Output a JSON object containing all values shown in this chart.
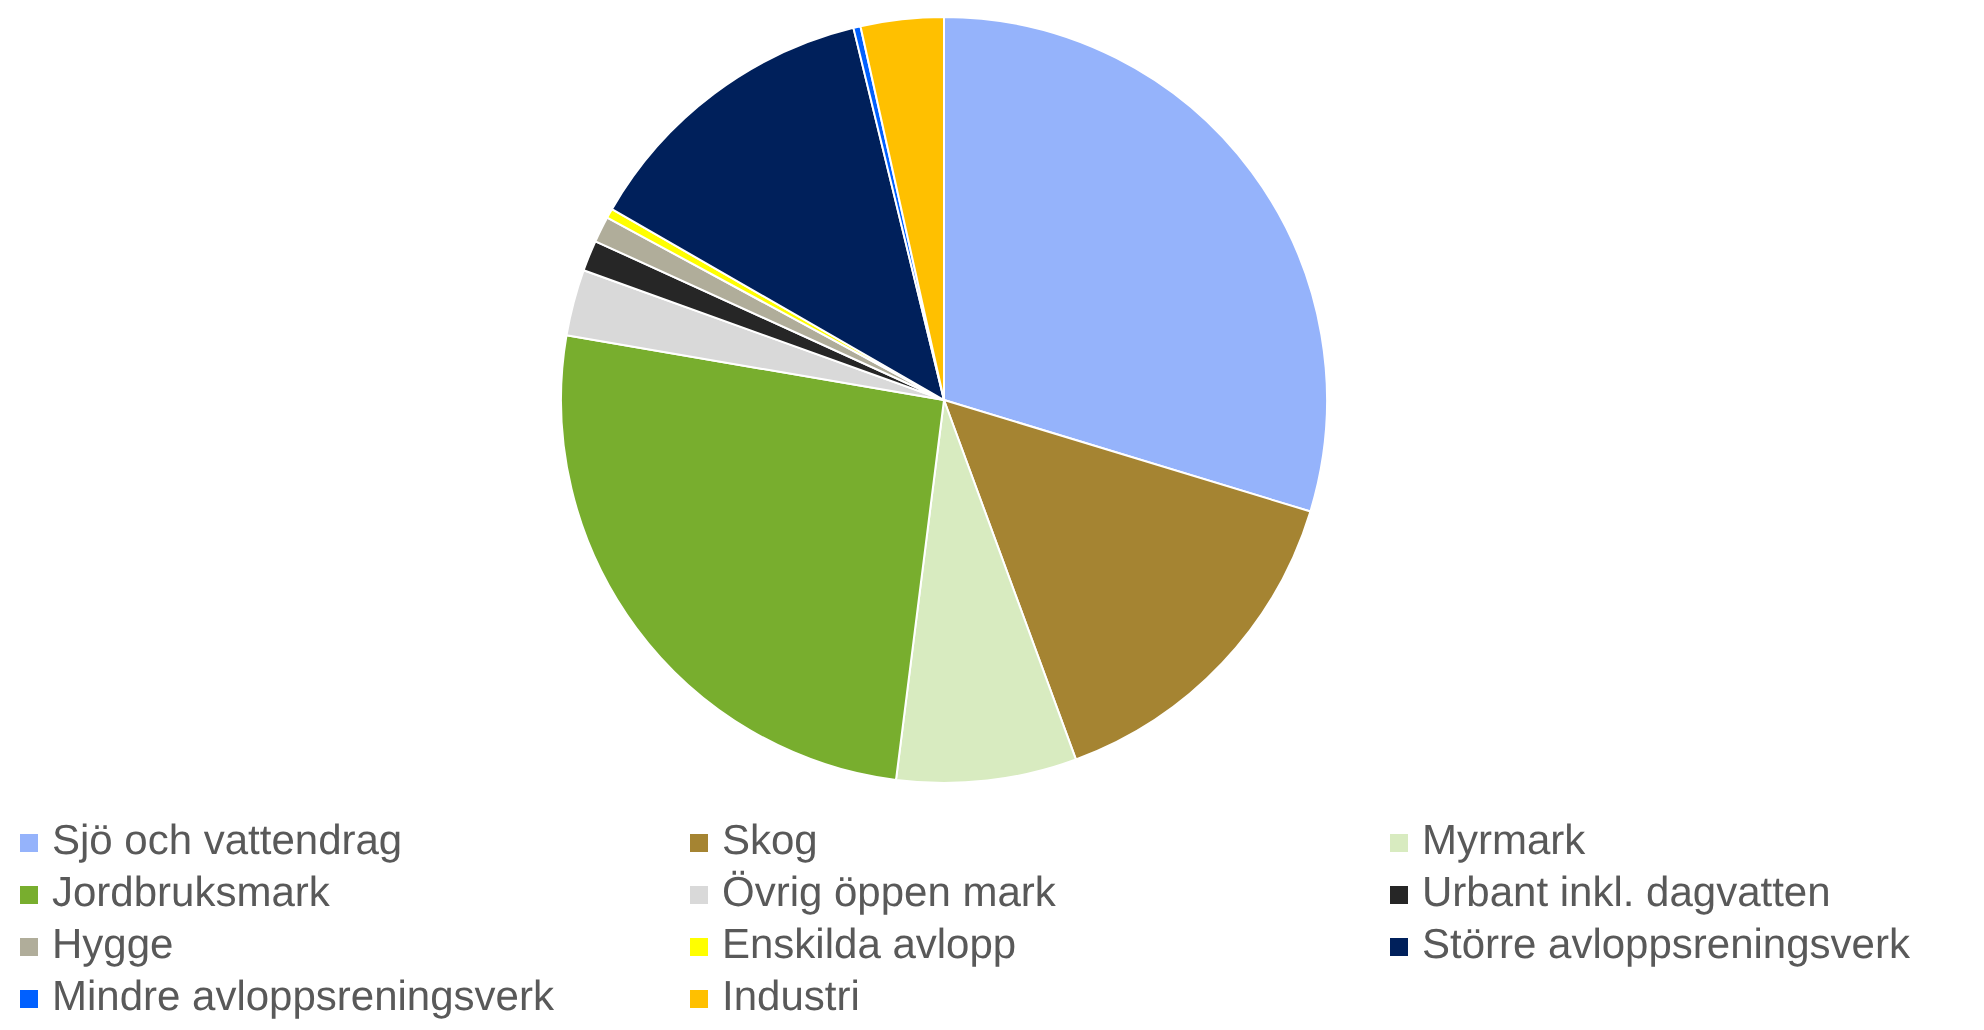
{
  "chart_data": {
    "type": "pie",
    "categories": [
      "Sjö och vattendrag",
      "Skog",
      "Myrmark",
      "Jordbruksmark",
      "Övrig öppen mark",
      "Urbant inkl. dagvatten",
      "Hygge",
      "Enskilda avlopp",
      "Större avloppsreningsverk",
      "Mindre avloppsreningsverk",
      "Industri"
    ],
    "values": [
      29.7,
      14.7,
      7.6,
      25.7,
      2.8,
      1.3,
      1.1,
      0.4,
      12.9,
      0.3,
      3.5
    ],
    "colors": [
      "#95b3fb",
      "#a58432",
      "#d8ebc0",
      "#78ae2e",
      "#d9d9d9",
      "#262626",
      "#b0ad9a",
      "#ffff00",
      "#00205b",
      "#0060ff",
      "#ffc000"
    ],
    "legend": "bottom"
  }
}
